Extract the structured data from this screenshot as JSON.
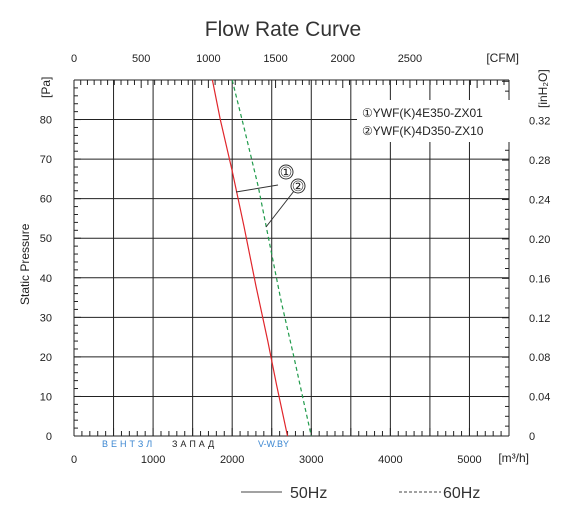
{
  "chart_data": {
    "type": "line",
    "title": "Flow Rate Curve",
    "xlabel_bottom": "[m³/h]",
    "xlabel_top": "[CFM]",
    "ylabel_left": "Static Pressure",
    "ylabel_left_unit": "[Pa]",
    "ylabel_right_unit": "[inH₂O]",
    "xlim": [
      0,
      5500
    ],
    "ylim": [
      0,
      90
    ],
    "grid": true,
    "x_ticks_bottom": [
      "0",
      "1000",
      "2000",
      "3000",
      "4000",
      "5000"
    ],
    "x_ticks_top": [
      "0",
      "500",
      "1000",
      "1500",
      "2000",
      "2500"
    ],
    "y_ticks_left": [
      "0",
      "10",
      "20",
      "30",
      "40",
      "50",
      "60",
      "70",
      "80"
    ],
    "y_ticks_right": [
      "0",
      "0.04",
      "0.08",
      "0.12",
      "0.16",
      "0.20",
      "0.24",
      "0.28",
      "0.32"
    ],
    "series": [
      {
        "name": "①YWF(K)4E350-ZX01",
        "color": "#e0262b",
        "dash": "solid",
        "x": [
          1750,
          1850,
          2000,
          2150,
          2300,
          2450,
          2560,
          2700
        ],
        "y": [
          90,
          80,
          67,
          53,
          38,
          24,
          13,
          0
        ]
      },
      {
        "name": "②YWF(K)4D350-ZX10",
        "color": "#1f9a4a",
        "dash": "dashed",
        "x": [
          2000,
          2150,
          2330,
          2480,
          2620,
          2780,
          2900,
          3000
        ],
        "y": [
          90,
          78,
          63,
          48,
          34,
          20,
          9,
          0
        ]
      }
    ],
    "annotations": [
      "①",
      "②"
    ],
    "legend_position": "top-right",
    "bottom_legend": [
      {
        "label": "50Hz",
        "style": "solid"
      },
      {
        "label": "60Hz",
        "style": "dashed"
      }
    ],
    "watermark": {
      "part1": "ВЕНТЗЛ",
      "part2": "ЗАПАД",
      "part3": "V-W.BY"
    }
  }
}
